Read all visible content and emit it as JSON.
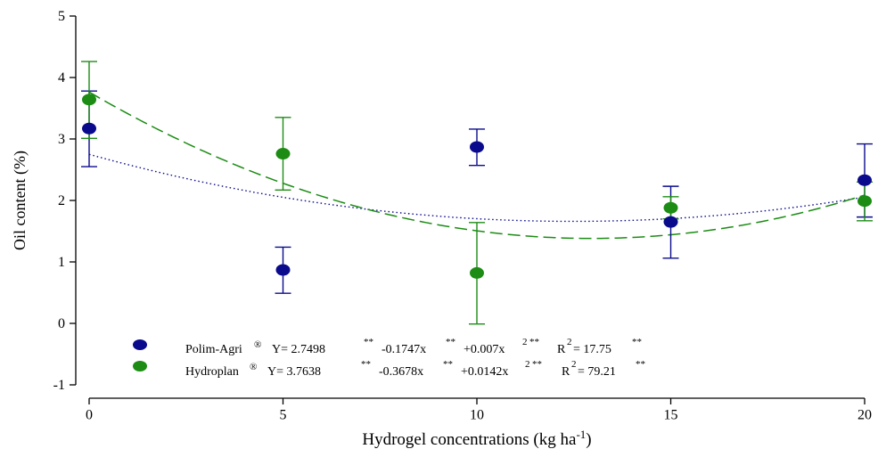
{
  "chart_data": {
    "type": "scatter",
    "xlabel": "Hydrogel concentrations (kg ha",
    "xlabel_sup": "-1",
    "xlabel_close": ")",
    "ylabel": "Oil content (%)",
    "xlim": [
      0,
      20
    ],
    "ylim": [
      -1,
      5
    ],
    "x_ticks": [
      0,
      5,
      10,
      15,
      20
    ],
    "y_ticks": [
      -1,
      0,
      1,
      2,
      3,
      4,
      5
    ],
    "grid": false,
    "legend_position": "bottom-left",
    "series": [
      {
        "name": "Polim-Agri",
        "color": "#0a0a8c",
        "x": [
          0,
          5,
          10,
          15,
          20
        ],
        "y": [
          3.17,
          0.87,
          2.87,
          1.65,
          2.33
        ],
        "err_low": [
          2.55,
          0.49,
          2.57,
          1.06,
          1.73
        ],
        "err_high": [
          3.78,
          1.24,
          3.16,
          2.23,
          2.92
        ],
        "fit": {
          "a": 2.7498,
          "b": -0.1747,
          "c": 0.007,
          "style": "dotted"
        }
      },
      {
        "name": "Hydroplan",
        "color": "#1c8c14",
        "x": [
          0,
          5,
          10,
          15,
          20
        ],
        "y": [
          3.64,
          2.76,
          0.82,
          1.88,
          1.99
        ],
        "err_low": [
          3.01,
          2.17,
          -0.01,
          1.7,
          1.67
        ],
        "err_high": [
          4.26,
          3.35,
          1.64,
          2.06,
          2.3
        ],
        "fit": {
          "a": 3.7638,
          "b": -0.3678,
          "c": 0.0142,
          "style": "dashed"
        }
      }
    ],
    "legend": [
      {
        "name": "Polim-Agri",
        "reg": "®",
        "eq_y": "Y= 2.7498",
        "eq_b": "-0.1747x",
        "eq_c": "+0.007x",
        "two": "2",
        "sig": "**",
        "r2_label": "R",
        "r2_value": "= 17.75"
      },
      {
        "name": "Hydroplan",
        "reg": "®",
        "eq_y": "Y= 3.7638",
        "eq_b": "-0.3678x",
        "eq_c": "+0.0142x",
        "two": "2",
        "sig": "**",
        "r2_label": "R",
        "r2_value": "= 79.21"
      }
    ]
  }
}
